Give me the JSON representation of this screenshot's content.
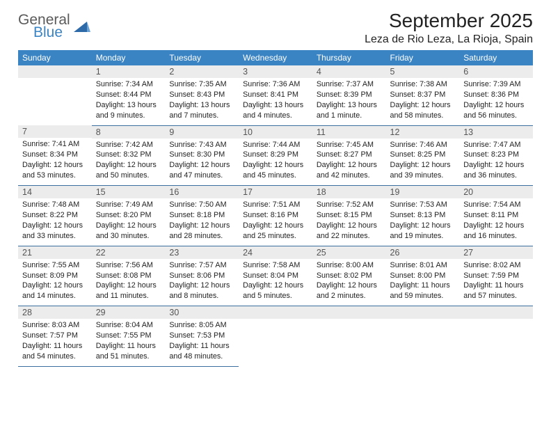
{
  "logo": {
    "word1": "General",
    "word2": "Blue",
    "tri_color": "#2e6aa8"
  },
  "title": "September 2025",
  "location": "Leza de Rio Leza, La Rioja, Spain",
  "colors": {
    "header_bg": "#3b84c4",
    "header_text": "#ffffff",
    "daynum_bg": "#ececec",
    "rule": "#3b6fa0"
  },
  "weekdays": [
    "Sunday",
    "Monday",
    "Tuesday",
    "Wednesday",
    "Thursday",
    "Friday",
    "Saturday"
  ],
  "month": {
    "first_weekday": 1,
    "num_days": 30
  },
  "days": {
    "1": {
      "sunrise": "7:34 AM",
      "sunset": "8:44 PM",
      "daylight": "13 hours and 9 minutes."
    },
    "2": {
      "sunrise": "7:35 AM",
      "sunset": "8:43 PM",
      "daylight": "13 hours and 7 minutes."
    },
    "3": {
      "sunrise": "7:36 AM",
      "sunset": "8:41 PM",
      "daylight": "13 hours and 4 minutes."
    },
    "4": {
      "sunrise": "7:37 AM",
      "sunset": "8:39 PM",
      "daylight": "13 hours and 1 minute."
    },
    "5": {
      "sunrise": "7:38 AM",
      "sunset": "8:37 PM",
      "daylight": "12 hours and 58 minutes."
    },
    "6": {
      "sunrise": "7:39 AM",
      "sunset": "8:36 PM",
      "daylight": "12 hours and 56 minutes."
    },
    "7": {
      "sunrise": "7:41 AM",
      "sunset": "8:34 PM",
      "daylight": "12 hours and 53 minutes."
    },
    "8": {
      "sunrise": "7:42 AM",
      "sunset": "8:32 PM",
      "daylight": "12 hours and 50 minutes."
    },
    "9": {
      "sunrise": "7:43 AM",
      "sunset": "8:30 PM",
      "daylight": "12 hours and 47 minutes."
    },
    "10": {
      "sunrise": "7:44 AM",
      "sunset": "8:29 PM",
      "daylight": "12 hours and 45 minutes."
    },
    "11": {
      "sunrise": "7:45 AM",
      "sunset": "8:27 PM",
      "daylight": "12 hours and 42 minutes."
    },
    "12": {
      "sunrise": "7:46 AM",
      "sunset": "8:25 PM",
      "daylight": "12 hours and 39 minutes."
    },
    "13": {
      "sunrise": "7:47 AM",
      "sunset": "8:23 PM",
      "daylight": "12 hours and 36 minutes."
    },
    "14": {
      "sunrise": "7:48 AM",
      "sunset": "8:22 PM",
      "daylight": "12 hours and 33 minutes."
    },
    "15": {
      "sunrise": "7:49 AM",
      "sunset": "8:20 PM",
      "daylight": "12 hours and 30 minutes."
    },
    "16": {
      "sunrise": "7:50 AM",
      "sunset": "8:18 PM",
      "daylight": "12 hours and 28 minutes."
    },
    "17": {
      "sunrise": "7:51 AM",
      "sunset": "8:16 PM",
      "daylight": "12 hours and 25 minutes."
    },
    "18": {
      "sunrise": "7:52 AM",
      "sunset": "8:15 PM",
      "daylight": "12 hours and 22 minutes."
    },
    "19": {
      "sunrise": "7:53 AM",
      "sunset": "8:13 PM",
      "daylight": "12 hours and 19 minutes."
    },
    "20": {
      "sunrise": "7:54 AM",
      "sunset": "8:11 PM",
      "daylight": "12 hours and 16 minutes."
    },
    "21": {
      "sunrise": "7:55 AM",
      "sunset": "8:09 PM",
      "daylight": "12 hours and 14 minutes."
    },
    "22": {
      "sunrise": "7:56 AM",
      "sunset": "8:08 PM",
      "daylight": "12 hours and 11 minutes."
    },
    "23": {
      "sunrise": "7:57 AM",
      "sunset": "8:06 PM",
      "daylight": "12 hours and 8 minutes."
    },
    "24": {
      "sunrise": "7:58 AM",
      "sunset": "8:04 PM",
      "daylight": "12 hours and 5 minutes."
    },
    "25": {
      "sunrise": "8:00 AM",
      "sunset": "8:02 PM",
      "daylight": "12 hours and 2 minutes."
    },
    "26": {
      "sunrise": "8:01 AM",
      "sunset": "8:00 PM",
      "daylight": "11 hours and 59 minutes."
    },
    "27": {
      "sunrise": "8:02 AM",
      "sunset": "7:59 PM",
      "daylight": "11 hours and 57 minutes."
    },
    "28": {
      "sunrise": "8:03 AM",
      "sunset": "7:57 PM",
      "daylight": "11 hours and 54 minutes."
    },
    "29": {
      "sunrise": "8:04 AM",
      "sunset": "7:55 PM",
      "daylight": "11 hours and 51 minutes."
    },
    "30": {
      "sunrise": "8:05 AM",
      "sunset": "7:53 PM",
      "daylight": "11 hours and 48 minutes."
    }
  },
  "labels": {
    "sunrise": "Sunrise:",
    "sunset": "Sunset:",
    "daylight": "Daylight:"
  }
}
